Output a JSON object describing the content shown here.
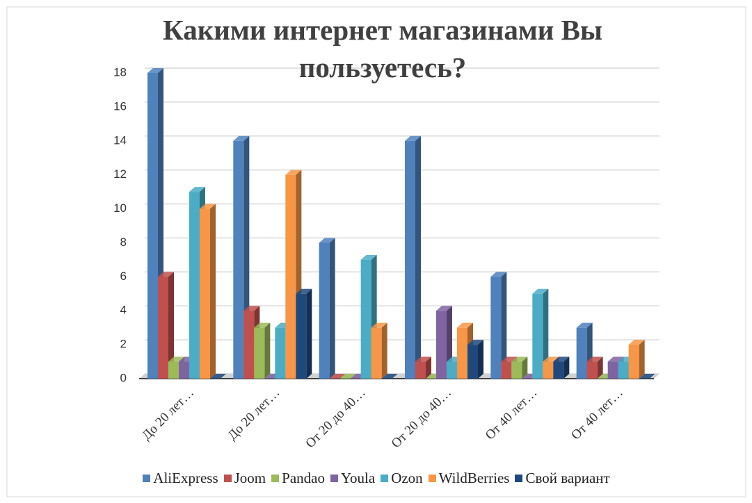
{
  "chart_data": {
    "type": "bar3d",
    "title": "Какими интернет магазинами Вы пользуетесь?",
    "categories": [
      "До 20 лет…",
      "До 20 лет…",
      "От 20 до 40…",
      "От 20 до 40…",
      "От 40 лет…",
      "От 40 лет…"
    ],
    "series": [
      {
        "name": "AliExpress",
        "color": "#4f81bd",
        "values": [
          18,
          14,
          8,
          14,
          6,
          3
        ]
      },
      {
        "name": "Joom",
        "color": "#c0504d",
        "values": [
          6,
          4,
          0,
          1,
          1,
          1
        ]
      },
      {
        "name": "Pandao",
        "color": "#9bbb59",
        "values": [
          1,
          3,
          0,
          0,
          1,
          0
        ]
      },
      {
        "name": "Youla",
        "color": "#8064a2",
        "values": [
          1,
          0,
          0,
          4,
          0,
          1
        ]
      },
      {
        "name": "Ozon",
        "color": "#4bacc6",
        "values": [
          11,
          3,
          7,
          1,
          5,
          1
        ]
      },
      {
        "name": "WildBerries",
        "color": "#f79646",
        "values": [
          10,
          12,
          3,
          3,
          1,
          2
        ]
      },
      {
        "name": "Свой вариант",
        "color": "#1f497d",
        "values": [
          0,
          5,
          0,
          2,
          1,
          0
        ]
      }
    ],
    "ylim": [
      0,
      18
    ],
    "yticks": [
      0,
      2,
      4,
      6,
      8,
      10,
      12,
      14,
      16,
      18
    ],
    "grid": true,
    "legend": "bottom"
  }
}
